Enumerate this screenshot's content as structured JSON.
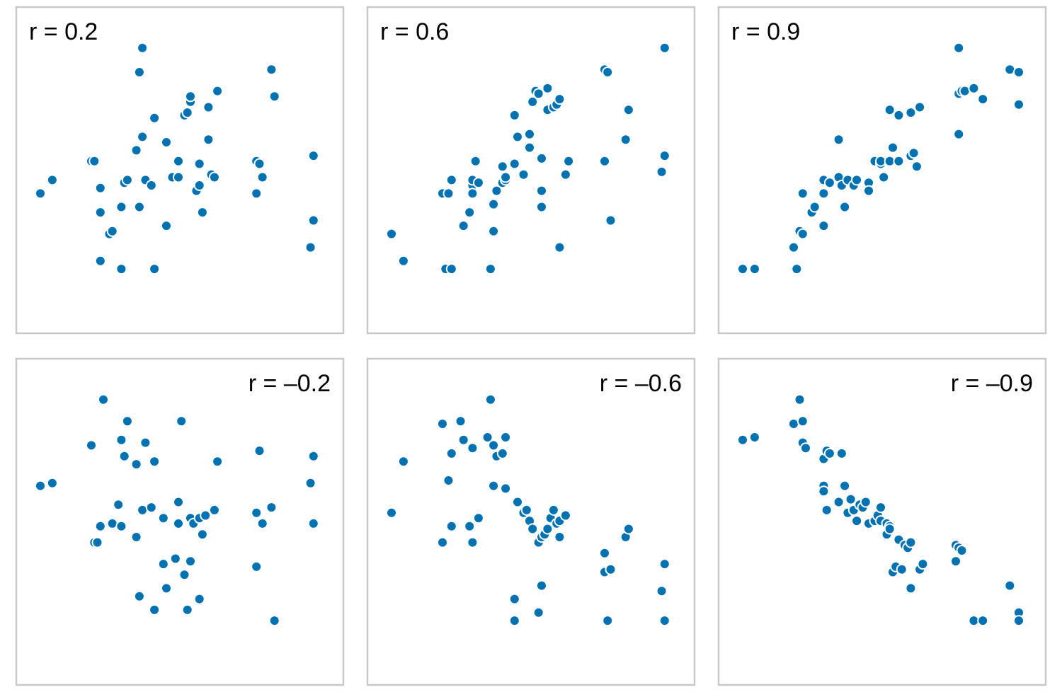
{
  "colors": {
    "point": "#0072B2",
    "frame": "#c8c8c8"
  },
  "chart_data": [
    {
      "type": "scatter",
      "label": "r = 0.2",
      "label_position": "top-left",
      "xlim": [
        0,
        100
      ],
      "ylim": [
        0,
        100
      ],
      "points": [
        [
          4,
          39
        ],
        [
          8,
          44
        ],
        [
          21,
          51
        ],
        [
          22,
          51
        ],
        [
          24,
          41
        ],
        [
          24,
          14
        ],
        [
          24,
          32
        ],
        [
          27,
          24
        ],
        [
          28,
          25
        ],
        [
          31,
          34
        ],
        [
          31,
          11
        ],
        [
          32,
          43
        ],
        [
          33,
          44
        ],
        [
          36,
          55
        ],
        [
          37,
          34
        ],
        [
          37,
          84
        ],
        [
          38,
          93
        ],
        [
          38,
          60
        ],
        [
          39,
          44
        ],
        [
          41,
          42
        ],
        [
          42,
          11
        ],
        [
          42,
          67
        ],
        [
          46,
          58
        ],
        [
          46,
          27
        ],
        [
          48,
          45
        ],
        [
          50,
          45
        ],
        [
          50,
          51
        ],
        [
          52,
          68
        ],
        [
          53,
          69
        ],
        [
          53,
          69
        ],
        [
          54,
          73
        ],
        [
          54,
          75
        ],
        [
          56,
          40
        ],
        [
          57,
          42
        ],
        [
          57,
          50
        ],
        [
          58,
          32
        ],
        [
          60,
          71
        ],
        [
          60,
          59
        ],
        [
          61,
          46
        ],
        [
          62,
          45
        ],
        [
          63,
          77
        ],
        [
          76,
          39
        ],
        [
          76,
          51
        ],
        [
          77,
          50
        ],
        [
          78,
          45
        ],
        [
          81,
          85
        ],
        [
          82,
          75
        ],
        [
          94,
          19
        ],
        [
          95,
          29
        ],
        [
          95,
          53
        ]
      ]
    },
    {
      "type": "scatter",
      "label": "r = 0.6",
      "label_position": "top-left",
      "xlim": [
        0,
        100
      ],
      "ylim": [
        0,
        100
      ],
      "points": [
        [
          4,
          24
        ],
        [
          8,
          14
        ],
        [
          21,
          39
        ],
        [
          22,
          11
        ],
        [
          23,
          39
        ],
        [
          24,
          44
        ],
        [
          24,
          11
        ],
        [
          28,
          27
        ],
        [
          30,
          32
        ],
        [
          31,
          42
        ],
        [
          31,
          39
        ],
        [
          31,
          44
        ],
        [
          32,
          51
        ],
        [
          33,
          43
        ],
        [
          37,
          11
        ],
        [
          38,
          25
        ],
        [
          38,
          35
        ],
        [
          39,
          40
        ],
        [
          41,
          43
        ],
        [
          41,
          49
        ],
        [
          42,
          44
        ],
        [
          42,
          45
        ],
        [
          45,
          68
        ],
        [
          45,
          50
        ],
        [
          46,
          60
        ],
        [
          48,
          46
        ],
        [
          50,
          56
        ],
        [
          50,
          61
        ],
        [
          51,
          73
        ],
        [
          52,
          77
        ],
        [
          53,
          76
        ],
        [
          54,
          34
        ],
        [
          54,
          40
        ],
        [
          54,
          52
        ],
        [
          56,
          78
        ],
        [
          56,
          70
        ],
        [
          58,
          71
        ],
        [
          59,
          72
        ],
        [
          60,
          19
        ],
        [
          60,
          74
        ],
        [
          62,
          46
        ],
        [
          63,
          51
        ],
        [
          75,
          51
        ],
        [
          75,
          85
        ],
        [
          76,
          84
        ],
        [
          77,
          29
        ],
        [
          82,
          59
        ],
        [
          83,
          70
        ],
        [
          94,
          47
        ],
        [
          95,
          53
        ],
        [
          95,
          93
        ]
      ]
    },
    {
      "type": "scatter",
      "label": "r = 0.9",
      "label_position": "top-left",
      "xlim": [
        0,
        100
      ],
      "ylim": [
        0,
        100
      ],
      "points": [
        [
          4,
          11
        ],
        [
          8,
          11
        ],
        [
          21,
          19
        ],
        [
          22,
          11
        ],
        [
          23,
          25
        ],
        [
          24,
          24
        ],
        [
          24,
          39
        ],
        [
          27,
          32
        ],
        [
          28,
          34
        ],
        [
          31,
          39
        ],
        [
          31,
          27
        ],
        [
          31,
          44
        ],
        [
          33,
          43
        ],
        [
          36,
          45
        ],
        [
          36,
          59
        ],
        [
          37,
          42
        ],
        [
          38,
          34
        ],
        [
          39,
          44
        ],
        [
          41,
          42
        ],
        [
          42,
          44
        ],
        [
          46,
          43
        ],
        [
          46,
          40
        ],
        [
          48,
          51
        ],
        [
          50,
          50
        ],
        [
          50,
          51
        ],
        [
          51,
          45
        ],
        [
          53,
          51
        ],
        [
          53,
          70
        ],
        [
          54,
          56
        ],
        [
          56,
          68
        ],
        [
          56,
          51
        ],
        [
          60,
          69
        ],
        [
          60,
          53
        ],
        [
          61,
          54
        ],
        [
          62,
          49
        ],
        [
          63,
          71
        ],
        [
          76,
          61
        ],
        [
          76,
          76
        ],
        [
          77,
          77
        ],
        [
          78,
          77
        ],
        [
          81,
          78
        ],
        [
          84,
          74
        ],
        [
          93,
          85
        ],
        [
          96,
          84
        ],
        [
          96,
          72
        ],
        [
          76,
          93
        ]
      ]
    },
    {
      "type": "scatter",
      "label": "r = –0.2",
      "label_position": "top-right",
      "xlim": [
        0,
        100
      ],
      "ylim": [
        0,
        100
      ],
      "points": [
        [
          4,
          61
        ],
        [
          8,
          62
        ],
        [
          21,
          76
        ],
        [
          22,
          40
        ],
        [
          23,
          40
        ],
        [
          24,
          46
        ],
        [
          25,
          93
        ],
        [
          28,
          47
        ],
        [
          30,
          54
        ],
        [
          31,
          78
        ],
        [
          31,
          46
        ],
        [
          32,
          72
        ],
        [
          33,
          85
        ],
        [
          36,
          42
        ],
        [
          36,
          69
        ],
        [
          37,
          20
        ],
        [
          38,
          52
        ],
        [
          39,
          77
        ],
        [
          41,
          53
        ],
        [
          42,
          70
        ],
        [
          42,
          15
        ],
        [
          45,
          32
        ],
        [
          45,
          49
        ],
        [
          46,
          23
        ],
        [
          49,
          34
        ],
        [
          50,
          55
        ],
        [
          50,
          47
        ],
        [
          51,
          85
        ],
        [
          52,
          28
        ],
        [
          53,
          15
        ],
        [
          54,
          49
        ],
        [
          54,
          33
        ],
        [
          55,
          47
        ],
        [
          57,
          19
        ],
        [
          57,
          49
        ],
        [
          58,
          43
        ],
        [
          59,
          50
        ],
        [
          62,
          52
        ],
        [
          63,
          70
        ],
        [
          76,
          31
        ],
        [
          76,
          51
        ],
        [
          77,
          74
        ],
        [
          78,
          47
        ],
        [
          81,
          53
        ],
        [
          82,
          11
        ],
        [
          94,
          62
        ],
        [
          95,
          72
        ],
        [
          95,
          47
        ]
      ]
    },
    {
      "type": "scatter",
      "label": "r = –0.6",
      "label_position": "top-right",
      "xlim": [
        0,
        100
      ],
      "ylim": [
        0,
        100
      ],
      "points": [
        [
          4,
          51
        ],
        [
          8,
          70
        ],
        [
          21,
          40
        ],
        [
          21,
          84
        ],
        [
          23,
          63
        ],
        [
          24,
          73
        ],
        [
          24,
          46
        ],
        [
          27,
          85
        ],
        [
          28,
          78
        ],
        [
          30,
          46
        ],
        [
          31,
          75
        ],
        [
          31,
          40
        ],
        [
          33,
          49
        ],
        [
          36,
          79
        ],
        [
          37,
          93
        ],
        [
          38,
          61
        ],
        [
          38,
          76
        ],
        [
          39,
          72
        ],
        [
          41,
          73
        ],
        [
          42,
          79
        ],
        [
          42,
          60
        ],
        [
          45,
          19
        ],
        [
          45,
          11
        ],
        [
          46,
          55
        ],
        [
          48,
          51
        ],
        [
          49,
          52
        ],
        [
          50,
          48
        ],
        [
          51,
          45
        ],
        [
          53,
          14
        ],
        [
          53,
          40
        ],
        [
          54,
          24
        ],
        [
          54,
          42
        ],
        [
          55,
          43
        ],
        [
          56,
          45
        ],
        [
          57,
          49
        ],
        [
          58,
          52
        ],
        [
          59,
          47
        ],
        [
          60,
          48
        ],
        [
          60,
          42
        ],
        [
          62,
          50
        ],
        [
          75,
          29
        ],
        [
          75,
          36
        ],
        [
          77,
          30
        ],
        [
          82,
          42
        ],
        [
          83,
          45
        ],
        [
          94,
          22
        ],
        [
          95,
          11
        ],
        [
          95,
          32
        ],
        [
          76,
          11
        ]
      ]
    },
    {
      "type": "scatter",
      "label": "r = –0.9",
      "label_position": "top-right",
      "xlim": [
        0,
        100
      ],
      "ylim": [
        0,
        100
      ],
      "points": [
        [
          4,
          78
        ],
        [
          8,
          79
        ],
        [
          21,
          84
        ],
        [
          23,
          93
        ],
        [
          24,
          77
        ],
        [
          24,
          85
        ],
        [
          25,
          75
        ],
        [
          31,
          71
        ],
        [
          31,
          61
        ],
        [
          31,
          59
        ],
        [
          32,
          74
        ],
        [
          32,
          52
        ],
        [
          33,
          73
        ],
        [
          36,
          55
        ],
        [
          37,
          73
        ],
        [
          38,
          61
        ],
        [
          39,
          51
        ],
        [
          40,
          56
        ],
        [
          41,
          52
        ],
        [
          42,
          48
        ],
        [
          43,
          54
        ],
        [
          44,
          53
        ],
        [
          45,
          55
        ],
        [
          46,
          47
        ],
        [
          48,
          48
        ],
        [
          49,
          50
        ],
        [
          50,
          53
        ],
        [
          50,
          48
        ],
        [
          52,
          43
        ],
        [
          52,
          47
        ],
        [
          53,
          46
        ],
        [
          53,
          45
        ],
        [
          54,
          29
        ],
        [
          55,
          31
        ],
        [
          56,
          41
        ],
        [
          57,
          30
        ],
        [
          58,
          39
        ],
        [
          59,
          38
        ],
        [
          60,
          40
        ],
        [
          60,
          23
        ],
        [
          63,
          30
        ],
        [
          64,
          32
        ],
        [
          75,
          33
        ],
        [
          75,
          39
        ],
        [
          76,
          38
        ],
        [
          77,
          37
        ],
        [
          81,
          11
        ],
        [
          84,
          11
        ],
        [
          93,
          24
        ],
        [
          96,
          14
        ],
        [
          96,
          11
        ]
      ]
    }
  ]
}
